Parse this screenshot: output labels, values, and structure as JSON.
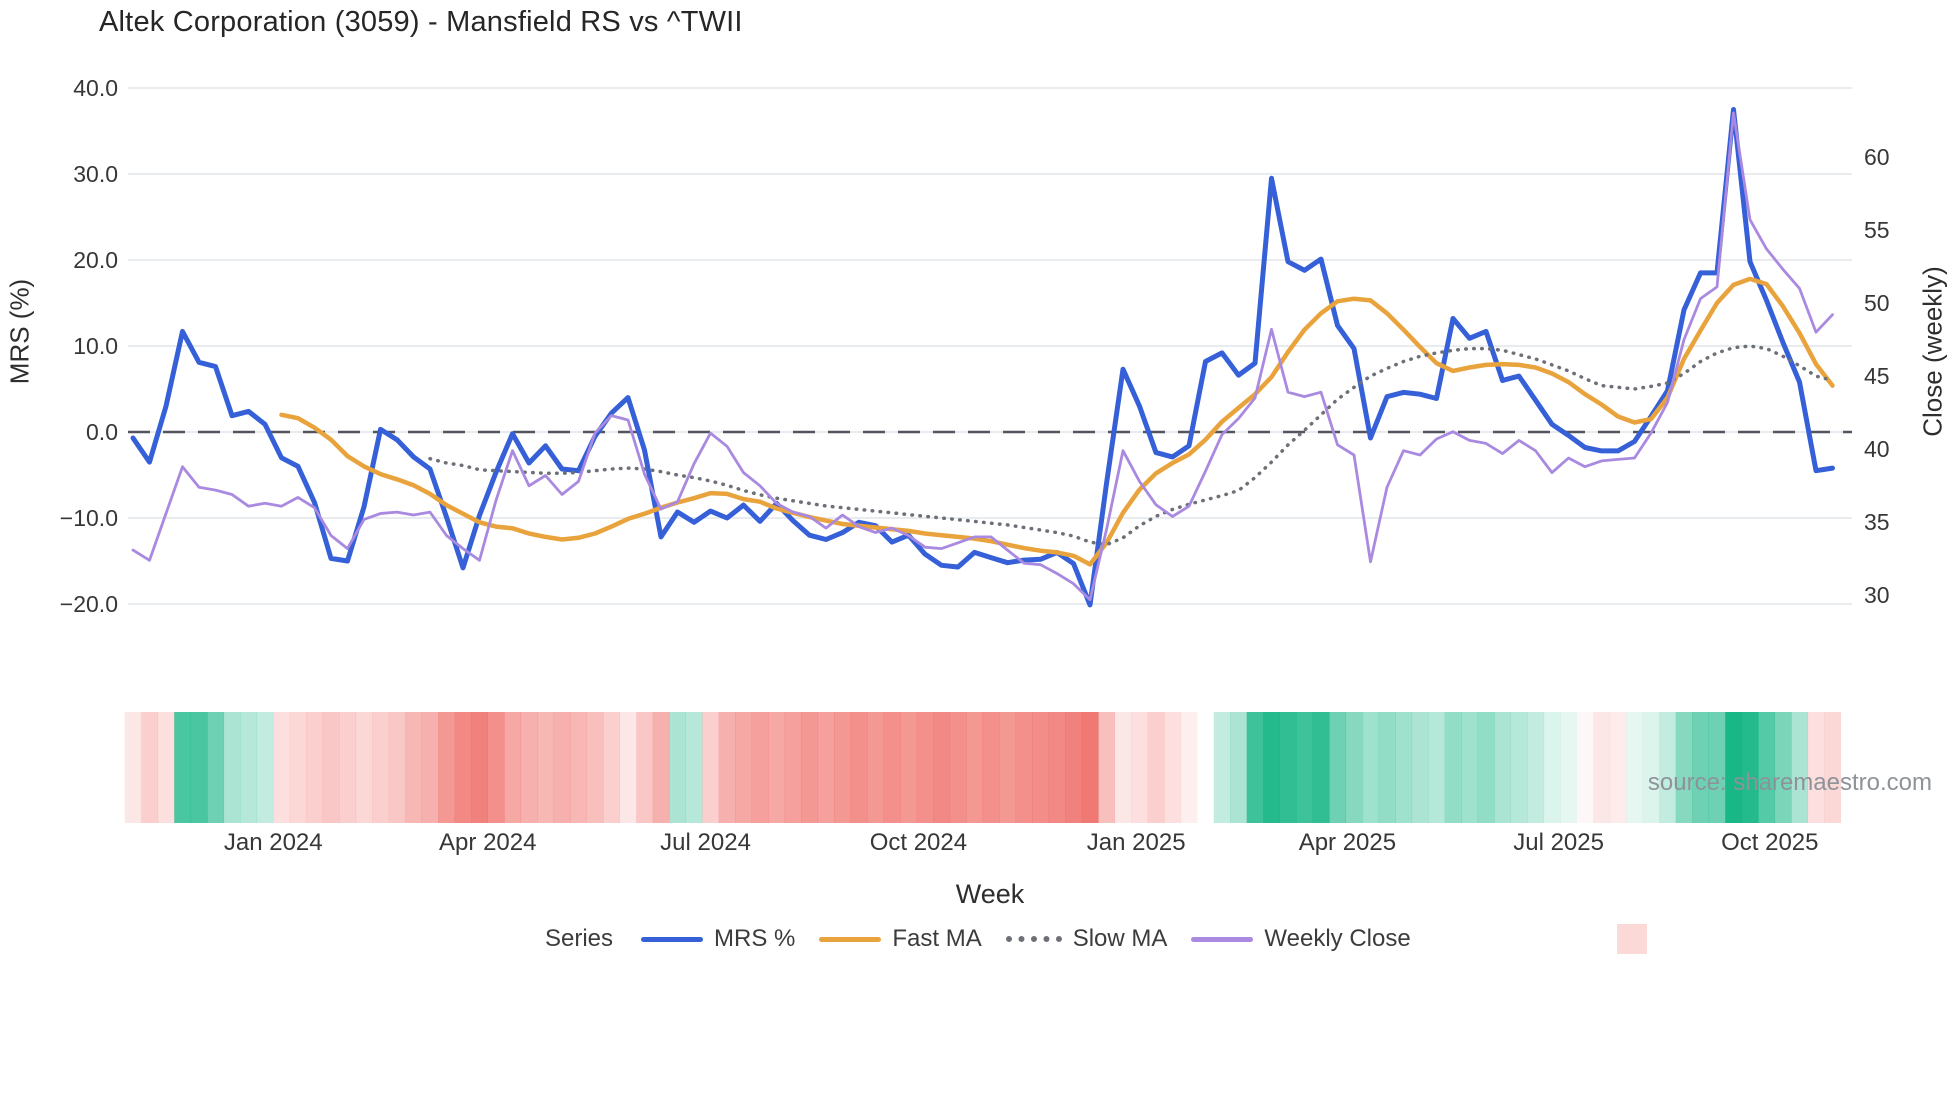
{
  "title": "Altek Corporation (3059) - Mansfield RS vs ^TWII",
  "source": "source: sharemaestro.com",
  "axes": {
    "left": {
      "title": "MRS (%)",
      "ticks": [
        "40.0",
        "30.0",
        "20.0",
        "10.0",
        "0.0",
        "−10.0",
        "−20.0"
      ],
      "tick_values": [
        40,
        30,
        20,
        10,
        0,
        -10,
        -20
      ]
    },
    "right": {
      "title": "Close (weekly)",
      "ticks": [
        "60",
        "55",
        "50",
        "45",
        "40",
        "35",
        "30"
      ],
      "tick_values": [
        60,
        55,
        50,
        45,
        40,
        35,
        30
      ]
    },
    "x": {
      "title": "Week",
      "ticks": [
        "Jan 2024",
        "Apr 2024",
        "Jul 2024",
        "Oct 2024",
        "Jan 2025",
        "Apr 2025",
        "Jul 2025",
        "Oct 2025"
      ],
      "tick_week_positions": [
        8.5,
        21.5,
        34.7,
        47.6,
        60.8,
        73.6,
        86.4,
        99.2
      ]
    }
  },
  "legend": {
    "label": "Series",
    "items": [
      {
        "name": "MRS %",
        "color": "#3560d8",
        "style": "line"
      },
      {
        "name": "Fast MA",
        "color": "#e9a33c",
        "style": "line"
      },
      {
        "name": "Slow MA",
        "color": "#6d7077",
        "style": "dotted"
      },
      {
        "name": "Weekly Close",
        "color": "#a98ae0",
        "style": "line"
      },
      {
        "name": "",
        "color": "#fad9d7",
        "style": "square"
      }
    ]
  },
  "chart_data": {
    "type": "line",
    "title": "Altek Corporation (3059) - Mansfield RS vs ^TWII",
    "xlabel": "Week",
    "ylabel_left": "MRS (%)",
    "ylabel_right": "Close (weekly)",
    "x_unit": "week_index",
    "n_weeks": 104,
    "x_ticks": [
      "Jan 2024",
      "Apr 2024",
      "Jul 2024",
      "Oct 2024",
      "Jan 2025",
      "Apr 2025",
      "Jul 2025",
      "Oct 2025"
    ],
    "left_ylim": [
      -24,
      42
    ],
    "right_ylim": [
      28,
      64
    ],
    "grid": true,
    "zero_dash_line": true,
    "legend_position": "bottom",
    "series": [
      {
        "name": "MRS %",
        "axis": "left",
        "color": "#3560d8",
        "style": "solid-thick",
        "values": [
          -0.7,
          -3.5,
          3.0,
          11.7,
          8.1,
          7.6,
          1.9,
          2.4,
          0.9,
          -3.0,
          -4.0,
          -8.2,
          -14.7,
          -15.0,
          -8.7,
          0.3,
          -0.9,
          -2.9,
          -4.3,
          -9.9,
          -15.8,
          -9.7,
          -4.7,
          -0.2,
          -3.6,
          -1.6,
          -4.3,
          -4.5,
          -0.5,
          2.2,
          4.0,
          -2.1,
          -12.2,
          -9.3,
          -10.5,
          -9.2,
          -10.0,
          -8.5,
          -10.4,
          -8.3,
          -10.3,
          -12.0,
          -12.5,
          -11.7,
          -10.5,
          -10.9,
          -12.8,
          -12.0,
          -14.2,
          -15.5,
          -15.7,
          -14.0,
          -14.6,
          -15.2,
          -14.9,
          -14.8,
          -14.0,
          -15.3,
          -20.1,
          -6.0,
          7.3,
          3.0,
          -2.4,
          -2.9,
          -1.6,
          8.2,
          9.2,
          6.6,
          8.0,
          29.5,
          19.8,
          18.8,
          20.1,
          12.4,
          9.7,
          -0.7,
          4.1,
          4.6,
          4.4,
          3.9,
          13.2,
          10.9,
          11.7,
          6.0,
          6.5,
          3.7,
          0.9,
          -0.4,
          -1.8,
          -2.2,
          -2.2,
          -1.1,
          1.8,
          4.8,
          14.2,
          18.5,
          18.5,
          37.5,
          19.8,
          15.3,
          10.4,
          5.8,
          -4.5,
          -4.2
        ]
      },
      {
        "name": "Fast MA",
        "axis": "left",
        "color": "#e9a33c",
        "style": "solid",
        "values": [
          null,
          null,
          null,
          null,
          null,
          null,
          null,
          null,
          null,
          2.0,
          1.6,
          0.5,
          -0.9,
          -2.8,
          -4.0,
          -4.9,
          -5.5,
          -6.2,
          -7.2,
          -8.5,
          -9.5,
          -10.5,
          -11.0,
          -11.2,
          -11.8,
          -12.2,
          -12.5,
          -12.3,
          -11.8,
          -11.0,
          -10.1,
          -9.5,
          -8.8,
          -8.2,
          -7.7,
          -7.1,
          -7.2,
          -7.8,
          -8.1,
          -8.9,
          -9.4,
          -9.9,
          -10.3,
          -10.7,
          -10.9,
          -11.1,
          -11.3,
          -11.5,
          -11.8,
          -12.0,
          -12.2,
          -12.4,
          -12.7,
          -13.1,
          -13.5,
          -13.8,
          -14.0,
          -14.4,
          -15.4,
          -12.9,
          -9.4,
          -6.7,
          -4.8,
          -3.6,
          -2.6,
          -0.9,
          1.2,
          2.8,
          4.4,
          6.4,
          9.3,
          11.9,
          13.8,
          15.2,
          15.5,
          15.3,
          13.8,
          11.9,
          9.9,
          8.0,
          7.1,
          7.5,
          7.8,
          7.9,
          7.8,
          7.5,
          6.8,
          5.8,
          4.4,
          3.2,
          1.8,
          1.1,
          1.5,
          4.0,
          8.5,
          11.8,
          15.0,
          17.1,
          17.8,
          17.2,
          14.6,
          11.5,
          7.9,
          5.4
        ]
      },
      {
        "name": "Slow MA",
        "axis": "left",
        "color": "#6d7077",
        "style": "dotted",
        "values": [
          null,
          null,
          null,
          null,
          null,
          null,
          null,
          null,
          null,
          null,
          null,
          null,
          null,
          null,
          null,
          null,
          null,
          null,
          -3.1,
          -3.6,
          -3.9,
          -4.4,
          -4.5,
          -4.6,
          -4.7,
          -4.8,
          -4.8,
          -4.7,
          -4.5,
          -4.3,
          -4.2,
          -4.3,
          -4.6,
          -5.0,
          -5.3,
          -5.7,
          -6.2,
          -6.8,
          -7.3,
          -7.7,
          -8.0,
          -8.3,
          -8.6,
          -8.8,
          -9.0,
          -9.2,
          -9.4,
          -9.6,
          -9.8,
          -10.0,
          -10.2,
          -10.4,
          -10.6,
          -10.8,
          -11.1,
          -11.4,
          -11.7,
          -12.1,
          -12.8,
          -13.1,
          -12.3,
          -10.9,
          -9.8,
          -9.0,
          -8.4,
          -7.9,
          -7.4,
          -6.8,
          -5.3,
          -3.5,
          -1.5,
          0.2,
          2.0,
          3.8,
          5.2,
          6.5,
          7.4,
          8.2,
          8.8,
          9.2,
          9.5,
          9.7,
          9.7,
          9.5,
          9.0,
          8.5,
          7.8,
          7.1,
          6.2,
          5.4,
          5.2,
          5.0,
          5.3,
          5.7,
          6.8,
          8.2,
          9.2,
          9.8,
          10.0,
          9.7,
          8.8,
          7.7,
          6.5,
          6.0
        ]
      },
      {
        "name": "Weekly Close",
        "axis": "right",
        "color": "#a98ae0",
        "style": "solid-thin",
        "values": [
          33.1,
          32.4,
          35.6,
          38.8,
          37.4,
          37.2,
          36.9,
          36.1,
          36.3,
          36.1,
          36.7,
          36.0,
          34.1,
          33.2,
          35.2,
          35.6,
          35.7,
          35.5,
          35.7,
          34.1,
          33.2,
          32.4,
          36.5,
          39.9,
          37.5,
          38.2,
          36.9,
          37.8,
          41.1,
          42.3,
          42.0,
          38.3,
          35.9,
          36.4,
          39.0,
          41.1,
          40.2,
          38.4,
          37.5,
          36.3,
          35.7,
          35.4,
          34.6,
          35.5,
          34.7,
          34.3,
          34.6,
          34.1,
          33.3,
          33.2,
          33.6,
          34.0,
          34.0,
          33.1,
          32.2,
          32.1,
          31.5,
          30.8,
          29.7,
          34.5,
          39.9,
          37.8,
          36.2,
          35.4,
          36.1,
          38.5,
          41.0,
          42.1,
          43.5,
          48.2,
          43.9,
          43.6,
          43.9,
          40.3,
          39.6,
          32.3,
          37.4,
          39.9,
          39.6,
          40.7,
          41.2,
          40.6,
          40.4,
          39.7,
          40.6,
          39.9,
          38.4,
          39.4,
          38.8,
          39.2,
          39.3,
          39.4,
          41.1,
          43.2,
          47.5,
          50.3,
          51.1,
          63.0,
          55.7,
          53.7,
          52.3,
          51.0,
          48.0,
          49.2
        ]
      }
    ],
    "heatmap": {
      "description": "weekly heat strip under chart, green positive / red negative",
      "positive_color": "#0db380",
      "negative_color": "#ee615b",
      "values": [
        -0.15,
        -0.3,
        -0.2,
        0.75,
        0.75,
        0.6,
        0.35,
        0.3,
        0.25,
        -0.2,
        -0.25,
        -0.3,
        -0.35,
        -0.3,
        -0.25,
        -0.3,
        -0.35,
        -0.45,
        -0.5,
        -0.65,
        -0.75,
        -0.8,
        -0.7,
        -0.55,
        -0.5,
        -0.45,
        -0.5,
        -0.45,
        -0.4,
        -0.3,
        -0.15,
        -0.35,
        -0.5,
        0.35,
        0.3,
        -0.3,
        -0.5,
        -0.55,
        -0.6,
        -0.55,
        -0.6,
        -0.65,
        -0.6,
        -0.65,
        -0.7,
        -0.65,
        -0.7,
        -0.65,
        -0.7,
        -0.75,
        -0.7,
        -0.65,
        -0.7,
        -0.65,
        -0.7,
        -0.72,
        -0.75,
        -0.8,
        -0.85,
        -0.4,
        -0.15,
        -0.2,
        -0.3,
        -0.2,
        -0.1,
        null,
        0.25,
        0.35,
        0.8,
        0.9,
        0.85,
        0.8,
        0.85,
        0.6,
        0.5,
        0.4,
        0.45,
        0.4,
        0.35,
        0.3,
        0.45,
        0.4,
        0.45,
        0.35,
        0.3,
        0.25,
        0.15,
        0.1,
        -0.05,
        -0.15,
        -0.12,
        0.1,
        0.15,
        0.25,
        0.5,
        0.6,
        0.6,
        0.95,
        0.9,
        0.7,
        0.55,
        0.35,
        -0.2,
        -0.25
      ]
    }
  }
}
